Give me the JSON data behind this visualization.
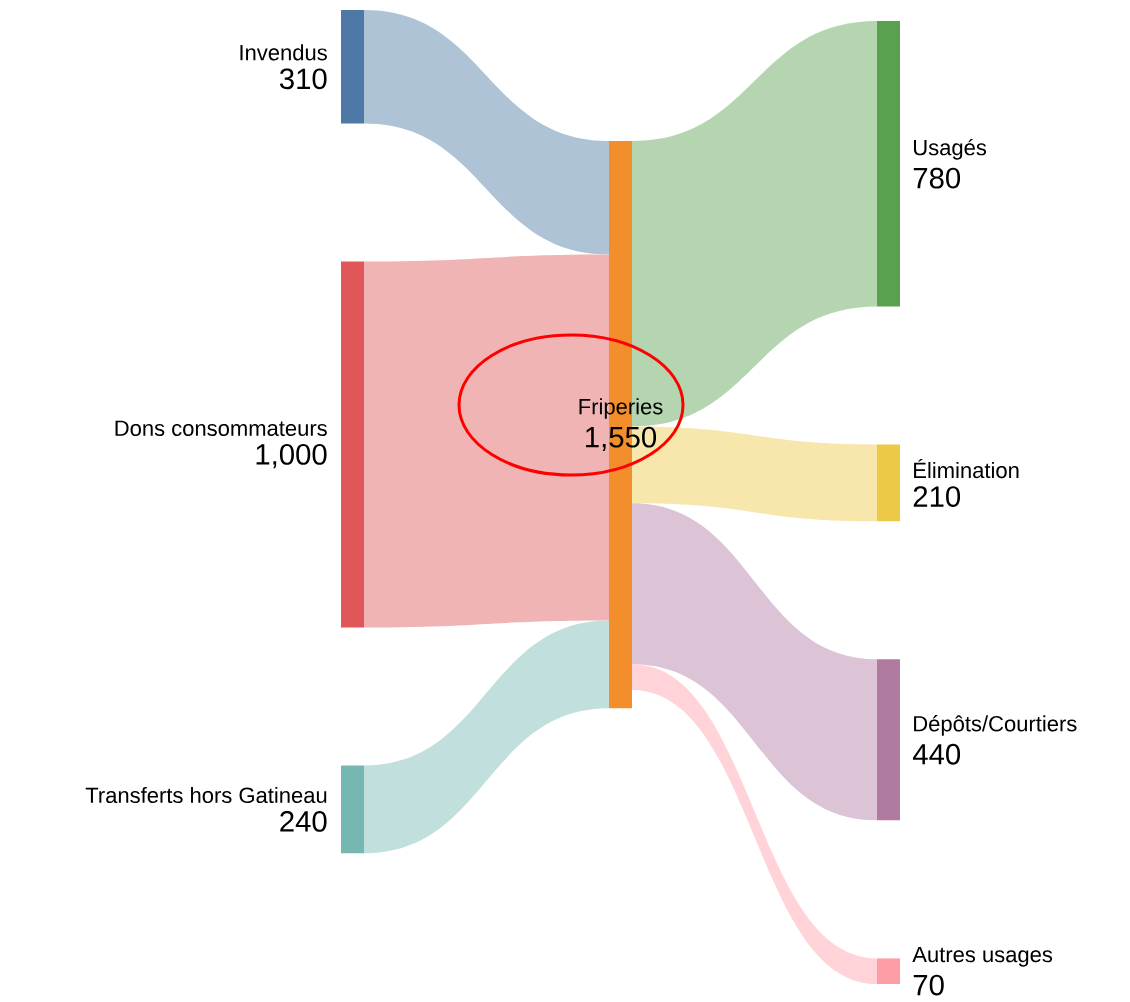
{
  "chart_data": {
    "type": "other",
    "categories": [
      "Invendus",
      "Dons consommateurs",
      "Transferts hors Gatineau",
      "Friperies",
      "Usagés",
      "Élimination",
      "Dépôts/Courtiers",
      "Autres usages"
    ],
    "values": [
      310,
      1000,
      240,
      1550,
      780,
      210,
      440,
      70
    ],
    "value_labels": [
      "310",
      "1,000",
      "240",
      "1,550",
      "780",
      "210",
      "440",
      "70"
    ],
    "colors": [
      "#4e79a7",
      "#e15759",
      "#76b7b2",
      "#f28e2b",
      "#59a14f",
      "#edc948",
      "#b07aa1",
      "#ff9da7"
    ]
  }
}
